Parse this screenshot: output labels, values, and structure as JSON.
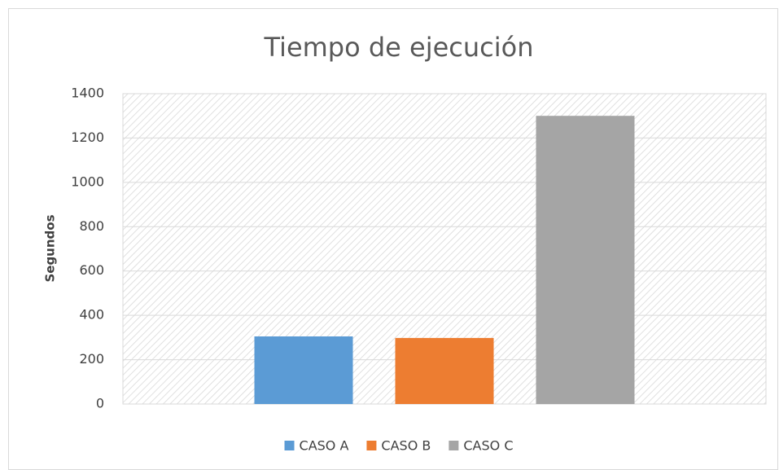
{
  "chart_data": {
    "type": "bar",
    "title": "Tiempo de ejecución",
    "y_label": "Segundos",
    "categories": [
      null
    ],
    "series": [
      {
        "name": "CASO A",
        "color": "#5b9bd5",
        "values": [
          305
        ]
      },
      {
        "name": "CASO B",
        "color": "#ed7d31",
        "values": [
          298
        ]
      },
      {
        "name": "CASO C",
        "color": "#a5a5a5",
        "values": [
          1300
        ]
      }
    ],
    "ylim": [
      0,
      1400
    ],
    "yticks": [
      0,
      200,
      400,
      600,
      800,
      1000,
      1200,
      1400
    ],
    "grid": true,
    "legend": "bottom"
  }
}
